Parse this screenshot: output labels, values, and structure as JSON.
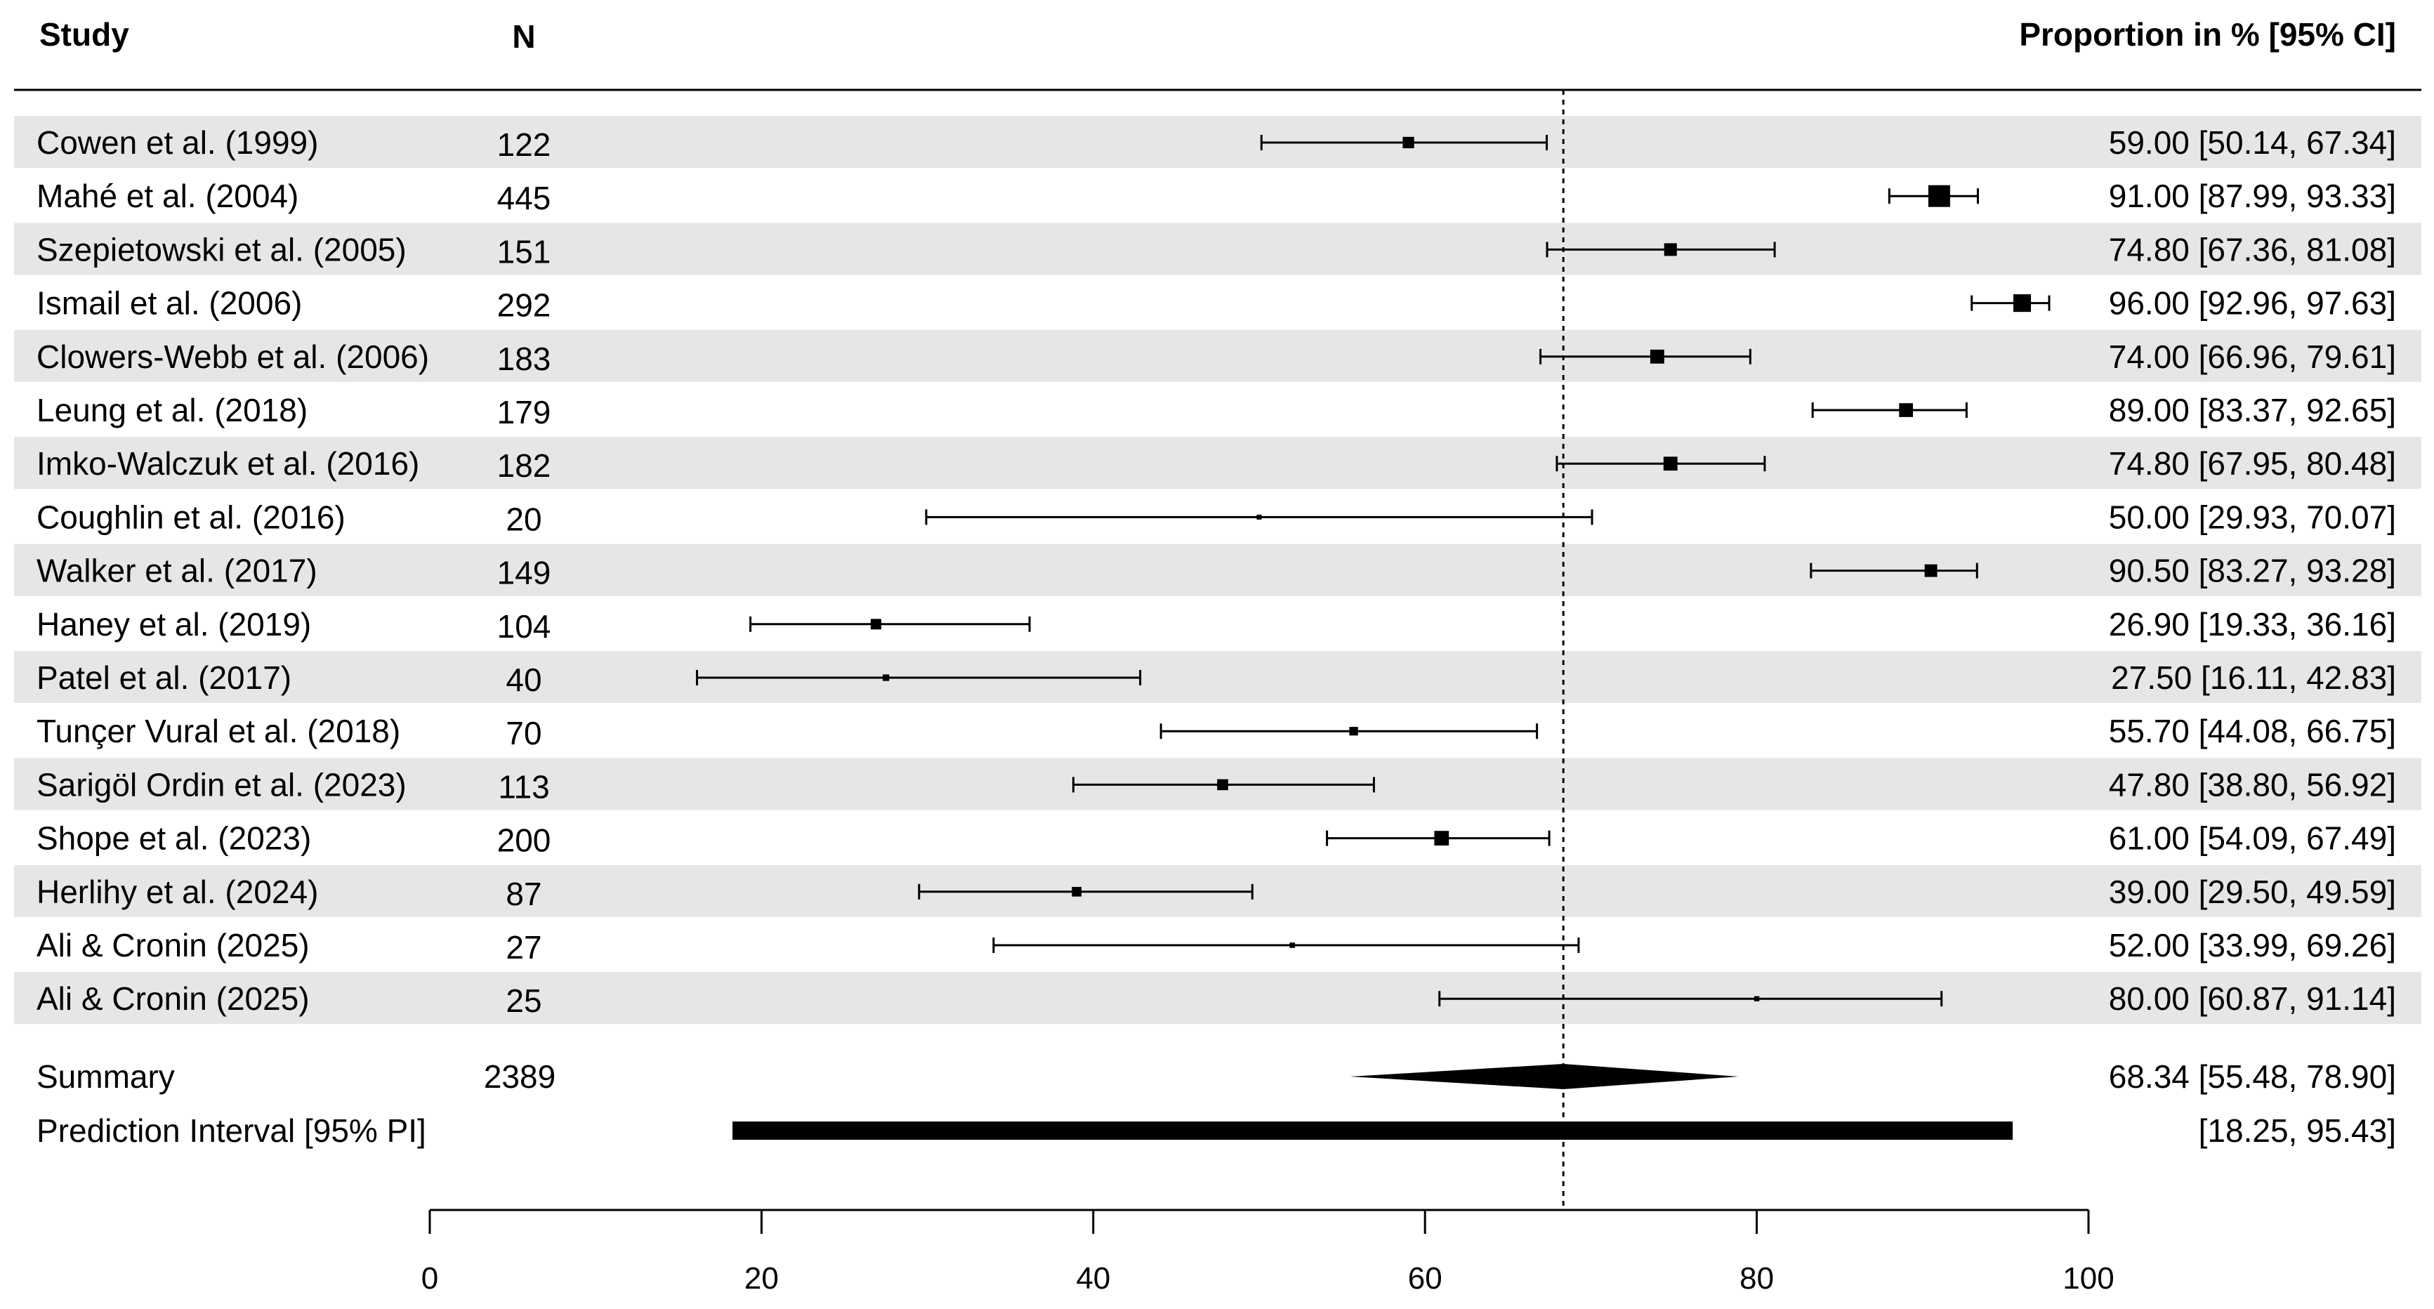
{
  "chart_data": {
    "type": "forest",
    "headers": {
      "study": "Study",
      "n": "N",
      "estimate": "Proportion in % [95% CI]"
    },
    "xlim": [
      0,
      100
    ],
    "xticks": [
      0,
      20,
      40,
      60,
      80,
      100
    ],
    "reference_line": 68.34,
    "grid": false,
    "row_shading": "alternating light gray",
    "studies": [
      {
        "label": "Cowen et al. (1999)",
        "n": "122",
        "est": 59.0,
        "lo": 50.14,
        "hi": 67.34,
        "text": "59.00 [50.14, 67.34]"
      },
      {
        "label": "Mahé et al. (2004)",
        "n": "445",
        "est": 91.0,
        "lo": 87.99,
        "hi": 93.33,
        "text": "91.00 [87.99, 93.33]"
      },
      {
        "label": "Szepietowski et al. (2005)",
        "n": "151",
        "est": 74.8,
        "lo": 67.36,
        "hi": 81.08,
        "text": "74.80 [67.36, 81.08]"
      },
      {
        "label": "Ismail et al. (2006)",
        "n": "292",
        "est": 96.0,
        "lo": 92.96,
        "hi": 97.63,
        "text": "96.00 [92.96, 97.63]"
      },
      {
        "label": "Clowers-Webb et al. (2006)",
        "n": "183",
        "est": 74.0,
        "lo": 66.96,
        "hi": 79.61,
        "text": "74.00 [66.96, 79.61]"
      },
      {
        "label": "Leung et al. (2018)",
        "n": "179",
        "est": 89.0,
        "lo": 83.37,
        "hi": 92.65,
        "text": "89.00 [83.37, 92.65]"
      },
      {
        "label": "Imko-Walczuk et al. (2016)",
        "n": "182",
        "est": 74.8,
        "lo": 67.95,
        "hi": 80.48,
        "text": "74.80 [67.95, 80.48]"
      },
      {
        "label": "Coughlin et al. (2016)",
        "n": "20",
        "est": 50.0,
        "lo": 29.93,
        "hi": 70.07,
        "text": "50.00 [29.93, 70.07]"
      },
      {
        "label": "Walker et al. (2017)",
        "n": "149",
        "est": 90.5,
        "lo": 83.27,
        "hi": 93.28,
        "text": "90.50 [83.27, 93.28]"
      },
      {
        "label": "Haney et al. (2019)",
        "n": "104",
        "est": 26.9,
        "lo": 19.33,
        "hi": 36.16,
        "text": "26.90 [19.33, 36.16]"
      },
      {
        "label": "Patel et al. (2017)",
        "n": "40",
        "est": 27.5,
        "lo": 16.11,
        "hi": 42.83,
        "text": "27.50 [16.11, 42.83]"
      },
      {
        "label": "Tunçer Vural et al. (2018)",
        "n": "70",
        "est": 55.7,
        "lo": 44.08,
        "hi": 66.75,
        "text": "55.70 [44.08, 66.75]"
      },
      {
        "label": "Sarigöl Ordin et al. (2023)",
        "n": "113",
        "est": 47.8,
        "lo": 38.8,
        "hi": 56.92,
        "text": "47.80 [38.80, 56.92]"
      },
      {
        "label": "Shope et al. (2023)",
        "n": "200",
        "est": 61.0,
        "lo": 54.09,
        "hi": 67.49,
        "text": "61.00 [54.09, 67.49]"
      },
      {
        "label": "Herlihy et al. (2024)",
        "n": "87",
        "est": 39.0,
        "lo": 29.5,
        "hi": 49.59,
        "text": "39.00 [29.50, 49.59]"
      },
      {
        "label": "Ali & Cronin (2025)",
        "n": "27",
        "est": 52.0,
        "lo": 33.99,
        "hi": 69.26,
        "text": "52.00 [33.99, 69.26]"
      },
      {
        "label": "Ali & Cronin (2025)",
        "n": "25",
        "est": 80.0,
        "lo": 60.87,
        "hi": 91.14,
        "text": "80.00 [60.87, 91.14]"
      }
    ],
    "summary": {
      "label": "Summary",
      "n": "2389",
      "est": 68.34,
      "lo": 55.48,
      "hi": 78.9,
      "text": "68.34 [55.48, 78.90]"
    },
    "prediction_interval": {
      "label": "Prediction Interval [95% PI]",
      "lo": 18.25,
      "hi": 95.43,
      "text": "[18.25, 95.43]"
    }
  }
}
